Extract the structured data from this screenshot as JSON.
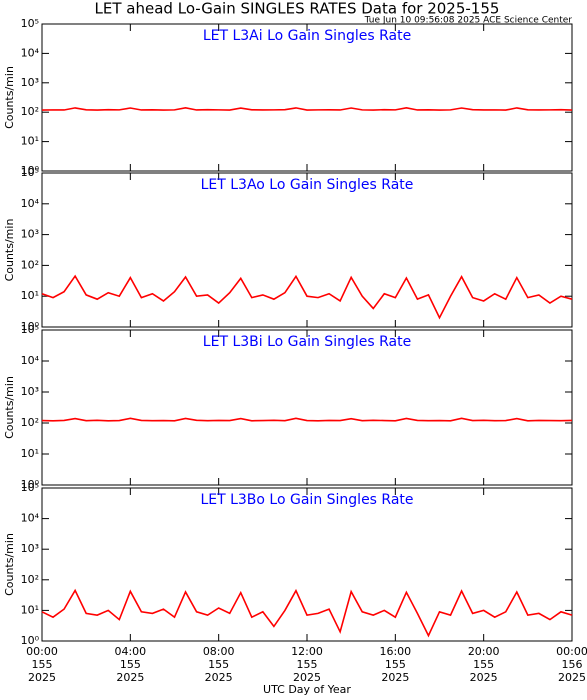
{
  "chart_data": [
    {
      "type": "line",
      "title": "LET ahead Lo-Gain SINGLES RATES Data for 2025-155",
      "timestamp": "Tue Jun 10 09:56:08 2025 ACE Science Center",
      "subtitle": "LET L3Ai Lo Gain Singles Rate",
      "ylabel": "Counts/min",
      "log": true,
      "subtitle_color": "#0000ff",
      "x": [
        0,
        0.5,
        1,
        1.5,
        2,
        2.5,
        3,
        3.5,
        4,
        4.5,
        5,
        5.5,
        6,
        6.5,
        7,
        7.5,
        8,
        8.5,
        9,
        9.5,
        10,
        10.5,
        11,
        11.5,
        12,
        12.5,
        13,
        13.5,
        14,
        14.5,
        15,
        15.5,
        16,
        16.5,
        17,
        17.5,
        18,
        18.5,
        19,
        19.5,
        20,
        20.5,
        21,
        21.5,
        22,
        22.5,
        23,
        23.5,
        24
      ],
      "series": [
        {
          "color": "#ff0000",
          "values": [
            118,
            120,
            119,
            140,
            121,
            118,
            122,
            120,
            139,
            119,
            121,
            118,
            120,
            141,
            119,
            122,
            120,
            118,
            138,
            121,
            119,
            120,
            122,
            140,
            118,
            120,
            121,
            119,
            139,
            120,
            118,
            122,
            120,
            141,
            119,
            121,
            118,
            120,
            139,
            122,
            119,
            120,
            118,
            140,
            121,
            119,
            120,
            122,
            118
          ]
        }
      ],
      "xlim": [
        0,
        24
      ],
      "ylim": [
        1,
        100000
      ],
      "yticks": [
        {
          "value": 1,
          "label": "10⁰"
        },
        {
          "value": 10,
          "label": "10¹"
        },
        {
          "value": 100,
          "label": "10²"
        },
        {
          "value": 1000,
          "label": "10³"
        },
        {
          "value": 10000,
          "label": "10⁴"
        },
        {
          "value": 100000,
          "label": "10⁵"
        }
      ]
    },
    {
      "type": "line",
      "subtitle": "LET L3Ao Lo Gain Singles Rate",
      "ylabel": "Counts/min",
      "log": true,
      "subtitle_color": "#0000ff",
      "x": [
        0,
        0.5,
        1,
        1.5,
        2,
        2.5,
        3,
        3.5,
        4,
        4.5,
        5,
        5.5,
        6,
        6.5,
        7,
        7.5,
        8,
        8.5,
        9,
        9.5,
        10,
        10.5,
        11,
        11.5,
        12,
        12.5,
        13,
        13.5,
        14,
        14.5,
        15,
        15.5,
        16,
        16.5,
        17,
        17.5,
        18,
        18.5,
        19,
        19.5,
        20,
        20.5,
        21,
        21.5,
        22,
        22.5,
        23,
        23.5,
        24
      ],
      "series": [
        {
          "color": "#ff0000",
          "values": [
            12,
            9,
            14,
            45,
            11,
            8,
            13,
            10,
            40,
            9,
            12,
            7,
            14,
            42,
            10,
            11,
            6,
            13,
            38,
            9,
            11,
            8,
            13,
            44,
            10,
            9,
            12,
            7,
            41,
            10,
            4,
            12,
            9,
            39,
            8,
            11,
            2,
            10,
            43,
            9,
            7,
            12,
            8,
            40,
            9,
            11,
            6,
            10,
            8
          ]
        }
      ],
      "xlim": [
        0,
        24
      ],
      "ylim": [
        1,
        100000
      ],
      "yticks": [
        {
          "value": 1,
          "label": "10⁰"
        },
        {
          "value": 10,
          "label": "10¹"
        },
        {
          "value": 100,
          "label": "10²"
        },
        {
          "value": 1000,
          "label": "10³"
        },
        {
          "value": 10000,
          "label": "10⁴"
        },
        {
          "value": 100000,
          "label": "10⁵"
        }
      ]
    },
    {
      "type": "line",
      "subtitle": "LET L3Bi Lo Gain Singles Rate",
      "ylabel": "Counts/min",
      "log": true,
      "subtitle_color": "#0000ff",
      "x": [
        0,
        0.5,
        1,
        1.5,
        2,
        2.5,
        3,
        3.5,
        4,
        4.5,
        5,
        5.5,
        6,
        6.5,
        7,
        7.5,
        8,
        8.5,
        9,
        9.5,
        10,
        10.5,
        11,
        11.5,
        12,
        12.5,
        13,
        13.5,
        14,
        14.5,
        15,
        15.5,
        16,
        16.5,
        17,
        17.5,
        18,
        18.5,
        19,
        19.5,
        20,
        20.5,
        21,
        21.5,
        22,
        22.5,
        23,
        23.5,
        24
      ],
      "series": [
        {
          "color": "#ff0000",
          "values": [
            120,
            118,
            121,
            139,
            119,
            122,
            118,
            120,
            141,
            121,
            119,
            120,
            118,
            140,
            122,
            119,
            121,
            120,
            139,
            118,
            120,
            122,
            119,
            141,
            120,
            118,
            121,
            120,
            138,
            119,
            122,
            120,
            118,
            140,
            121,
            119,
            120,
            118,
            141,
            120,
            122,
            119,
            120,
            139,
            118,
            121,
            120,
            119,
            121
          ]
        }
      ],
      "xlim": [
        0,
        24
      ],
      "ylim": [
        1,
        100000
      ],
      "yticks": [
        {
          "value": 1,
          "label": "10⁰"
        },
        {
          "value": 10,
          "label": "10¹"
        },
        {
          "value": 100,
          "label": "10²"
        },
        {
          "value": 1000,
          "label": "10³"
        },
        {
          "value": 10000,
          "label": "10⁴"
        },
        {
          "value": 100000,
          "label": "10⁵"
        }
      ]
    },
    {
      "type": "line",
      "subtitle": "LET L3Bo Lo Gain Singles Rate",
      "ylabel": "Counts/min",
      "log": true,
      "subtitle_color": "#0000ff",
      "xlabel": "UTC Day of Year",
      "x": [
        0,
        0.5,
        1,
        1.5,
        2,
        2.5,
        3,
        3.5,
        4,
        4.5,
        5,
        5.5,
        6,
        6.5,
        7,
        7.5,
        8,
        8.5,
        9,
        9.5,
        10,
        10.5,
        11,
        11.5,
        12,
        12.5,
        13,
        13.5,
        14,
        14.5,
        15,
        15.5,
        16,
        16.5,
        17,
        17.5,
        18,
        18.5,
        19,
        19.5,
        20,
        20.5,
        21,
        21.5,
        22,
        22.5,
        23,
        23.5,
        24
      ],
      "series": [
        {
          "color": "#ff0000",
          "values": [
            9,
            6,
            11,
            45,
            8,
            7,
            10,
            5,
            42,
            9,
            8,
            11,
            6,
            40,
            9,
            7,
            12,
            8,
            38,
            6,
            9,
            3,
            10,
            44,
            7,
            8,
            11,
            2,
            41,
            9,
            7,
            10,
            6,
            39,
            8,
            1.5,
            9,
            7,
            43,
            8,
            10,
            6,
            9,
            40,
            7,
            8,
            5,
            9,
            7
          ]
        }
      ],
      "xlim": [
        0,
        24
      ],
      "ylim": [
        1,
        100000
      ],
      "yticks": [
        {
          "value": 1,
          "label": "10⁰"
        },
        {
          "value": 10,
          "label": "10¹"
        },
        {
          "value": 100,
          "label": "10²"
        },
        {
          "value": 1000,
          "label": "10³"
        },
        {
          "value": 10000,
          "label": "10⁴"
        },
        {
          "value": 100000,
          "label": "10⁵"
        }
      ],
      "xticks": [
        {
          "value": 0,
          "label": "00:00",
          "day": "155",
          "year": "2025"
        },
        {
          "value": 4,
          "label": "04:00",
          "day": "155",
          "year": "2025"
        },
        {
          "value": 8,
          "label": "08:00",
          "day": "155",
          "year": "2025"
        },
        {
          "value": 12,
          "label": "12:00",
          "day": "155",
          "year": "2025"
        },
        {
          "value": 16,
          "label": "16:00",
          "day": "155",
          "year": "2025"
        },
        {
          "value": 20,
          "label": "20:00",
          "day": "155",
          "year": "2025"
        },
        {
          "value": 24,
          "label": "00:00",
          "day": "156",
          "year": "2025"
        }
      ]
    }
  ]
}
